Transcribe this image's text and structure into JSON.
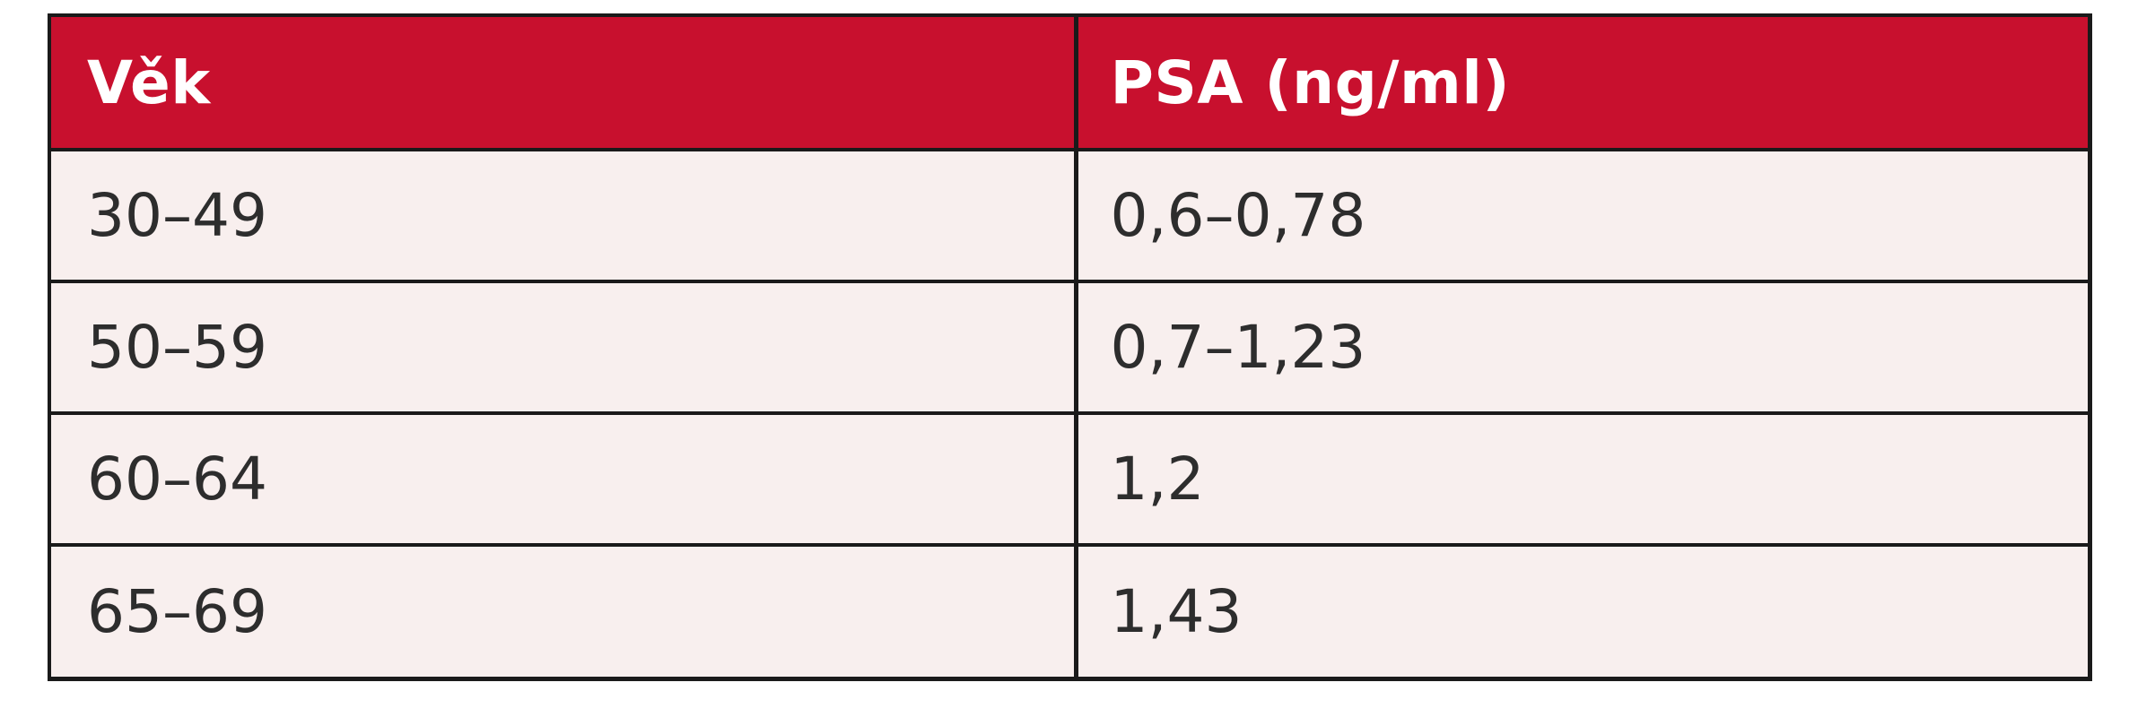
{
  "table": {
    "headers": [
      "Věk",
      "PSA (ng/ml)"
    ],
    "rows": [
      [
        "30–49",
        "0,6–0,78"
      ],
      [
        "50–59",
        "0,7–1,23"
      ],
      [
        "60–64",
        "1,2"
      ],
      [
        "65–69",
        "1,43"
      ]
    ]
  },
  "colors": {
    "header_background": "#c8102e",
    "header_text": "#ffffff",
    "body_background": "#f8efee",
    "border": "#1a1a1a",
    "body_text": "#2d2d2d"
  }
}
